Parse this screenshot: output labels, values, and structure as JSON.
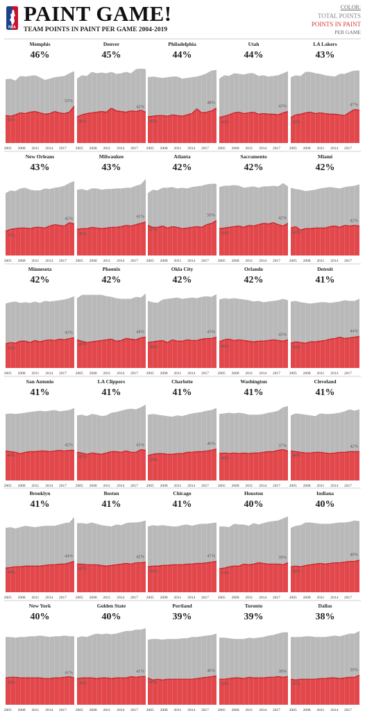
{
  "header": {
    "logo_text": "NBA",
    "title": "PAINT GAME!",
    "subtitle": "TEAM POINTS IN PAINT PER GAME 2004-2019"
  },
  "legend": {
    "heading": "COLOR:",
    "total_label": "TOTAL POINTS",
    "paint_label": "POINTS IN PAINT",
    "per_game_label": "PER GAME"
  },
  "colors": {
    "total_area": "#b9b9b9",
    "paint_area": "#e2474b",
    "paint_line": "#c81f25",
    "divider": "#cfcfcf",
    "logo_blue": "#1d428a",
    "logo_red": "#c8102e"
  },
  "chart_data": {
    "type": "area",
    "x_tick_labels": [
      "2005",
      "2008",
      "2011",
      "2014",
      "2017"
    ],
    "x_start_season": 2004,
    "x_end_season": 2019,
    "teams": [
      {
        "name": "Memphis",
        "pct": "46%",
        "start_label": "43%",
        "end_label": "53%",
        "total": [
          95,
          96,
          93,
          100,
          99,
          100,
          101,
          98,
          94,
          96,
          98,
          99,
          100,
          104,
          107
        ],
        "paint": [
          41,
          40,
          42,
          45,
          44,
          46,
          47,
          45,
          43,
          44,
          47,
          45,
          44,
          46,
          55
        ]
      },
      {
        "name": "Denver",
        "pct": "45%",
        "start_label": "40%",
        "end_label": "42%",
        "total": [
          96,
          101,
          100,
          106,
          104,
          105,
          104,
          106,
          103,
          104,
          106,
          104,
          110,
          111,
          110
        ],
        "paint": [
          39,
          42,
          44,
          45,
          46,
          47,
          46,
          52,
          48,
          47,
          46,
          48,
          47,
          49,
          46
        ]
      },
      {
        "name": "Philadelphia",
        "pct": "44%",
        "start_label": "40%",
        "end_label": "48%",
        "total": [
          98,
          99,
          98,
          97,
          98,
          99,
          99,
          96,
          97,
          98,
          99,
          101,
          104,
          108,
          109
        ],
        "paint": [
          39,
          40,
          41,
          41,
          40,
          42,
          41,
          40,
          42,
          44,
          51,
          45,
          46,
          48,
          52
        ]
      },
      {
        "name": "Utah",
        "pct": "44%",
        "start_label": "40%",
        "end_label": "43%",
        "total": [
          96,
          101,
          100,
          104,
          103,
          102,
          104,
          104,
          100,
          101,
          99,
          100,
          101,
          104,
          107
        ],
        "paint": [
          38,
          40,
          42,
          45,
          46,
          44,
          45,
          46,
          43,
          44,
          43,
          43,
          42,
          45,
          47
        ]
      },
      {
        "name": "LA Lakers",
        "pct": "43%",
        "start_label": "39%",
        "end_label": "47%",
        "total": [
          98,
          101,
          100,
          106,
          106,
          104,
          103,
          101,
          100,
          99,
          103,
          103,
          106,
          108,
          108
        ],
        "paint": [
          38,
          42,
          43,
          45,
          46,
          44,
          45,
          44,
          43,
          43,
          42,
          41,
          46,
          50,
          49
        ]
      },
      {
        "name": "New Orleans",
        "pct": "43%",
        "start_label": "37%",
        "end_label": "42%",
        "total": [
          93,
          97,
          96,
          100,
          101,
          98,
          97,
          97,
          100,
          99,
          101,
          102,
          104,
          108,
          111
        ],
        "paint": [
          36,
          39,
          40,
          41,
          41,
          40,
          42,
          42,
          41,
          44,
          46,
          45,
          44,
          49,
          47
        ]
      },
      {
        "name": "Milwaukee",
        "pct": "43%",
        "start_label": "40%",
        "end_label": "41%",
        "total": [
          98,
          99,
          97,
          100,
          100,
          98,
          99,
          99,
          100,
          100,
          101,
          101,
          104,
          106,
          114
        ],
        "paint": [
          39,
          40,
          40,
          42,
          41,
          40,
          41,
          42,
          42,
          43,
          45,
          44,
          46,
          48,
          50
        ]
      },
      {
        "name": "Atlanta",
        "pct": "42%",
        "start_label": "47%",
        "end_label": "50%",
        "total": [
          93,
          98,
          97,
          101,
          101,
          102,
          100,
          101,
          100,
          102,
          103,
          104,
          106,
          107,
          107
        ],
        "paint": [
          45,
          42,
          42,
          44,
          41,
          43,
          42,
          40,
          41,
          42,
          43,
          42,
          46,
          48,
          52
        ]
      },
      {
        "name": "Sacramento",
        "pct": "42%",
        "start_label": "39%",
        "end_label": "42%",
        "total": [
          102,
          104,
          104,
          105,
          104,
          101,
          102,
          103,
          101,
          103,
          103,
          104,
          103,
          108,
          103
        ],
        "paint": [
          40,
          41,
          42,
          43,
          44,
          42,
          45,
          44,
          46,
          48,
          47,
          49,
          46,
          44,
          48
        ]
      },
      {
        "name": "Miami",
        "pct": "42%",
        "start_label": "43%",
        "end_label": "42%",
        "total": [
          101,
          99,
          98,
          96,
          97,
          98,
          100,
          101,
          102,
          101,
          100,
          102,
          103,
          104,
          106
        ],
        "paint": [
          41,
          43,
          38,
          40,
          40,
          41,
          41,
          41,
          43,
          44,
          42,
          45,
          44,
          45,
          44
        ]
      },
      {
        "name": "Minnesota",
        "pct": "42%",
        "start_label": "36%",
        "end_label": "43%",
        "total": [
          96,
          98,
          99,
          97,
          98,
          97,
          99,
          97,
          100,
          99,
          100,
          101,
          102,
          104,
          107
        ],
        "paint": [
          36,
          38,
          37,
          40,
          40,
          38,
          41,
          39,
          41,
          42,
          41,
          43,
          42,
          44,
          45
        ]
      },
      {
        "name": "Phoenix",
        "pct": "42%",
        "start_label": "40%",
        "end_label": "44%",
        "total": [
          104,
          109,
          109,
          109,
          109,
          109,
          107,
          106,
          104,
          103,
          103,
          103,
          106,
          105,
          111
        ],
        "paint": [
          42,
          40,
          38,
          39,
          40,
          41,
          42,
          43,
          40,
          41,
          44,
          43,
          42,
          45,
          46
        ]
      },
      {
        "name": "Okla City",
        "pct": "42%",
        "start_label": "38%",
        "end_label": "43%",
        "total": [
          100,
          98,
          97,
          102,
          103,
          104,
          105,
          103,
          104,
          105,
          104,
          106,
          107,
          106,
          110
        ],
        "paint": [
          38,
          39,
          40,
          41,
          38,
          42,
          40,
          40,
          42,
          41,
          41,
          43,
          44,
          44,
          46
        ]
      },
      {
        "name": "Orlando",
        "pct": "42%",
        "start_label": "40%",
        "end_label": "43%",
        "total": [
          102,
          104,
          103,
          104,
          103,
          102,
          101,
          99,
          100,
          98,
          99,
          100,
          101,
          103,
          101
        ],
        "paint": [
          39,
          42,
          43,
          41,
          42,
          41,
          40,
          39,
          40,
          40,
          41,
          42,
          41,
          40,
          42
        ]
      },
      {
        "name": "Detroit",
        "pct": "41%",
        "start_label": "39%",
        "end_label": "44%",
        "total": [
          99,
          100,
          98,
          97,
          96,
          97,
          98,
          98,
          97,
          98,
          99,
          101,
          100,
          100,
          103
        ],
        "paint": [
          37,
          39,
          38,
          37,
          39,
          39,
          40,
          41,
          43,
          44,
          46,
          44,
          45,
          46,
          47
        ]
      },
      {
        "name": "San Antonio",
        "pct": "41%",
        "start_label": "44%",
        "end_label": "42%",
        "total": [
          99,
          100,
          99,
          100,
          101,
          102,
          103,
          104,
          103,
          104,
          105,
          103,
          104,
          105,
          108
        ],
        "paint": [
          44,
          43,
          42,
          40,
          42,
          43,
          43,
          44,
          44,
          43,
          44,
          45,
          44,
          45,
          45
        ]
      },
      {
        "name": "LA Clippers",
        "pct": "41%",
        "start_label": "42%",
        "end_label": "43%",
        "total": [
          97,
          98,
          96,
          99,
          98,
          96,
          97,
          101,
          102,
          104,
          106,
          107,
          106,
          109,
          113
        ],
        "paint": [
          42,
          41,
          39,
          41,
          40,
          39,
          41,
          43,
          43,
          42,
          44,
          42,
          42,
          46,
          45
        ]
      },
      {
        "name": "Charlotte",
        "pct": "41%",
        "start_label": "39%",
        "end_label": "46%",
        "total": [
          98,
          99,
          98,
          97,
          96,
          95,
          97,
          96,
          98,
          100,
          101,
          102,
          104,
          105,
          108
        ],
        "paint": [
          37,
          39,
          40,
          40,
          39,
          39,
          40,
          40,
          42,
          42,
          43,
          43,
          44,
          45,
          47
        ]
      },
      {
        "name": "Washington",
        "pct": "41%",
        "start_label": "40%",
        "end_label": "37%",
        "total": [
          99,
          100,
          101,
          100,
          101,
          100,
          98,
          98,
          98,
          99,
          101,
          102,
          104,
          109,
          111
        ],
        "paint": [
          40,
          41,
          40,
          41,
          40,
          41,
          40,
          41,
          41,
          42,
          43,
          43,
          45,
          46,
          44
        ]
      },
      {
        "name": "Cleveland",
        "pct": "41%",
        "start_label": "44%",
        "end_label": "42%",
        "total": [
          97,
          100,
          99,
          98,
          97,
          96,
          100,
          99,
          99,
          100,
          101,
          103,
          106,
          104,
          106
        ],
        "paint": [
          44,
          43,
          42,
          41,
          41,
          42,
          42,
          41,
          40,
          41,
          42,
          42,
          43,
          43,
          43
        ]
      },
      {
        "name": "Brooklyn",
        "pct": "41%",
        "start_label": "38%",
        "end_label": "44%",
        "total": [
          96,
          97,
          95,
          97,
          99,
          98,
          97,
          98,
          99,
          99,
          99,
          101,
          103,
          104,
          112
        ],
        "paint": [
          36,
          37,
          38,
          38,
          39,
          39,
          39,
          39,
          40,
          41,
          41,
          42,
          42,
          44,
          46
        ]
      },
      {
        "name": "Boston",
        "pct": "41%",
        "start_label": "43%",
        "end_label": "42%",
        "total": [
          103,
          103,
          102,
          104,
          102,
          100,
          99,
          98,
          101,
          100,
          103,
          104,
          104,
          105,
          107
        ],
        "paint": [
          42,
          42,
          41,
          41,
          41,
          40,
          39,
          40,
          41,
          42,
          43,
          42,
          44,
          44,
          45
        ]
      },
      {
        "name": "Chicago",
        "pct": "41%",
        "start_label": "39%",
        "end_label": "47%",
        "total": [
          98,
          100,
          99,
          100,
          99,
          98,
          98,
          100,
          101,
          99,
          101,
          102,
          102,
          103,
          104
        ],
        "paint": [
          38,
          39,
          39,
          40,
          40,
          41,
          41,
          41,
          42,
          42,
          43,
          43,
          44,
          45,
          46
        ]
      },
      {
        "name": "Houston",
        "pct": "40%",
        "start_label": "33%",
        "end_label": "39%",
        "total": [
          98,
          98,
          97,
          102,
          101,
          101,
          99,
          103,
          101,
          103,
          105,
          106,
          107,
          110,
          113
        ],
        "paint": [
          35,
          36,
          38,
          39,
          39,
          42,
          41,
          42,
          44,
          43,
          42,
          42,
          42,
          41,
          44
        ]
      },
      {
        "name": "Indiana",
        "pct": "40%",
        "start_label": "38%",
        "end_label": "49%",
        "total": [
          96,
          99,
          100,
          104,
          104,
          103,
          102,
          102,
          102,
          103,
          104,
          104,
          105,
          107,
          106
        ],
        "paint": [
          38,
          39,
          38,
          40,
          41,
          42,
          43,
          42,
          43,
          44,
          44,
          45,
          46,
          46,
          48
        ]
      },
      {
        "name": "New York",
        "pct": "40%",
        "start_label": "38%",
        "end_label": "41%",
        "total": [
          101,
          101,
          100,
          101,
          101,
          102,
          102,
          103,
          102,
          101,
          102,
          102,
          103,
          102,
          102
        ],
        "paint": [
          40,
          41,
          41,
          40,
          40,
          40,
          40,
          40,
          39,
          39,
          40,
          40,
          41,
          42,
          40
        ]
      },
      {
        "name": "Golden State",
        "pct": "40%",
        "start_label": "38%",
        "end_label": "41%",
        "total": [
          100,
          102,
          101,
          104,
          106,
          105,
          106,
          105,
          106,
          108,
          110,
          110,
          112,
          112,
          114
        ],
        "paint": [
          39,
          40,
          40,
          40,
          39,
          40,
          40,
          39,
          40,
          40,
          40,
          42,
          41,
          42,
          42
        ]
      },
      {
        "name": "Portland",
        "pct": "39%",
        "start_label": "40%",
        "end_label": "40%",
        "total": [
          97,
          98,
          98,
          97,
          98,
          98,
          98,
          99,
          99,
          101,
          101,
          102,
          103,
          104,
          106
        ],
        "paint": [
          40,
          37,
          38,
          37,
          38,
          38,
          38,
          38,
          38,
          38,
          39,
          40,
          41,
          42,
          43
        ]
      },
      {
        "name": "Toronto",
        "pct": "39%",
        "start_label": "38%",
        "end_label": "38%",
        "total": [
          100,
          100,
          99,
          98,
          98,
          98,
          100,
          99,
          100,
          101,
          103,
          104,
          106,
          108,
          108
        ],
        "paint": [
          38,
          38,
          39,
          40,
          40,
          39,
          41,
          40,
          40,
          40,
          41,
          41,
          42,
          41,
          42
        ]
      },
      {
        "name": "Dallas",
        "pct": "38%",
        "start_label": "37%",
        "end_label": "39%",
        "total": [
          101,
          101,
          101,
          102,
          102,
          101,
          101,
          101,
          102,
          103,
          102,
          104,
          106,
          106,
          110
        ],
        "paint": [
          38,
          37,
          38,
          38,
          38,
          38,
          39,
          39,
          40,
          40,
          39,
          40,
          41,
          41,
          44
        ]
      }
    ]
  }
}
